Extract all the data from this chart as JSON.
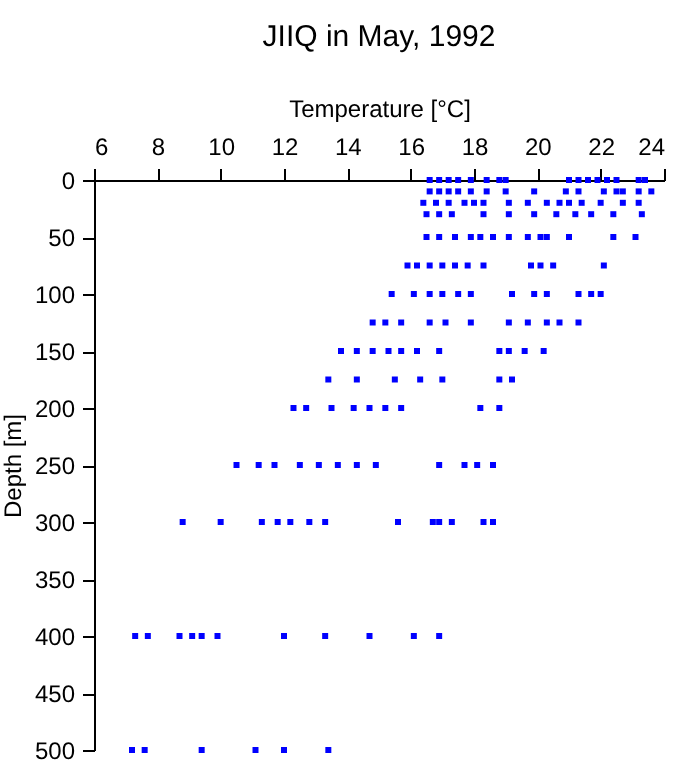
{
  "chart_data": {
    "type": "scatter",
    "title": "JIIQ in May, 1992",
    "xlabel": "Temperature [°C]",
    "ylabel": "Depth [m]",
    "xlim": [
      6,
      24
    ],
    "xticks": [
      6,
      8,
      10,
      12,
      14,
      16,
      18,
      20,
      22,
      24
    ],
    "ylim": [
      500,
      0
    ],
    "yticks": [
      0,
      50,
      100,
      150,
      200,
      250,
      300,
      350,
      400,
      450,
      500
    ],
    "grid": false,
    "marker": "square",
    "series": [
      {
        "color": "#0000ff",
        "x": [
          16.6,
          16.9,
          17.2,
          17.5,
          17.9,
          18.4,
          18.8,
          19.0,
          21.0,
          21.3,
          21.6,
          21.9,
          22.2,
          22.5,
          23.2,
          23.4,
          16.6,
          16.9,
          17.2,
          17.5,
          17.9,
          18.4,
          19.0,
          19.9,
          20.9,
          21.3,
          22.1,
          22.5,
          22.7,
          23.2,
          23.6,
          16.4,
          16.8,
          17.2,
          17.7,
          18.0,
          18.3,
          19.1,
          19.7,
          20.3,
          20.7,
          21.0,
          21.4,
          22.0,
          22.7,
          23.2,
          16.5,
          16.9,
          17.3,
          18.3,
          19.1,
          19.9,
          20.6,
          21.2,
          21.7,
          22.4,
          23.3,
          16.5,
          16.9,
          17.4,
          17.9,
          18.2,
          18.6,
          19.1,
          19.7,
          20.1,
          20.3,
          21.0,
          22.4,
          23.1,
          15.9,
          16.2,
          16.6,
          17.0,
          17.4,
          17.8,
          18.3,
          19.8,
          20.1,
          20.5,
          22.1,
          15.4,
          16.1,
          16.6,
          17.0,
          17.5,
          17.9,
          19.2,
          19.9,
          20.3,
          21.3,
          21.7,
          22.0,
          14.8,
          15.2,
          15.7,
          16.6,
          17.1,
          17.9,
          19.1,
          19.7,
          20.3,
          20.7,
          21.3,
          13.8,
          14.3,
          14.8,
          15.3,
          15.7,
          16.2,
          16.9,
          18.8,
          19.1,
          19.6,
          20.2,
          13.4,
          14.3,
          15.5,
          16.3,
          17.0,
          18.8,
          19.2,
          12.3,
          12.7,
          13.5,
          14.2,
          14.7,
          15.2,
          15.7,
          18.2,
          18.8,
          10.5,
          11.2,
          11.7,
          12.5,
          13.1,
          13.7,
          14.3,
          14.9,
          16.9,
          17.7,
          18.1,
          18.6,
          8.8,
          10.0,
          11.3,
          11.8,
          12.2,
          12.8,
          13.3,
          15.6,
          16.7,
          16.9,
          17.3,
          18.3,
          18.6,
          7.3,
          7.7,
          8.7,
          9.1,
          9.4,
          9.9,
          12.0,
          13.3,
          14.7,
          16.1,
          16.9,
          7.2,
          7.6,
          9.4,
          11.1,
          12.0,
          13.4
        ],
        "values": [
          0,
          0,
          0,
          0,
          0,
          0,
          0,
          0,
          0,
          0,
          0,
          0,
          0,
          0,
          0,
          0,
          10,
          10,
          10,
          10,
          10,
          10,
          10,
          10,
          10,
          10,
          10,
          10,
          10,
          10,
          10,
          20,
          20,
          20,
          20,
          20,
          20,
          20,
          20,
          20,
          20,
          20,
          20,
          20,
          20,
          20,
          30,
          30,
          30,
          30,
          30,
          30,
          30,
          30,
          30,
          30,
          30,
          50,
          50,
          50,
          50,
          50,
          50,
          50,
          50,
          50,
          50,
          50,
          50,
          50,
          75,
          75,
          75,
          75,
          75,
          75,
          75,
          75,
          75,
          75,
          75,
          100,
          100,
          100,
          100,
          100,
          100,
          100,
          100,
          100,
          100,
          100,
          100,
          125,
          125,
          125,
          125,
          125,
          125,
          125,
          125,
          125,
          125,
          125,
          150,
          150,
          150,
          150,
          150,
          150,
          150,
          150,
          150,
          150,
          150,
          175,
          175,
          175,
          175,
          175,
          175,
          175,
          200,
          200,
          200,
          200,
          200,
          200,
          200,
          200,
          200,
          250,
          250,
          250,
          250,
          250,
          250,
          250,
          250,
          250,
          250,
          250,
          250,
          300,
          300,
          300,
          300,
          300,
          300,
          300,
          300,
          300,
          300,
          300,
          300,
          300,
          400,
          400,
          400,
          400,
          400,
          400,
          400,
          400,
          400,
          400,
          400,
          500,
          500,
          500,
          500,
          500,
          500
        ]
      }
    ]
  }
}
